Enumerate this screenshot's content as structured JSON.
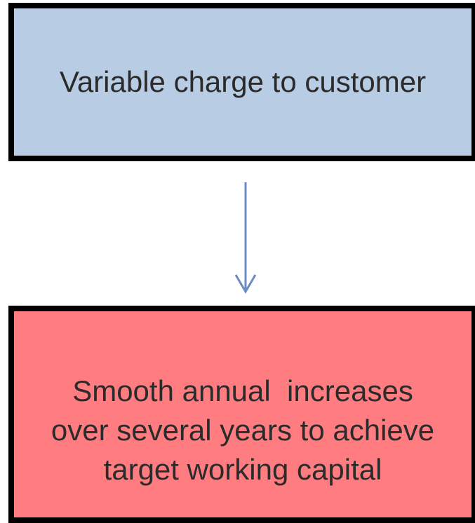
{
  "nodes": [
    {
      "label": "Variable charge to customer"
    },
    {
      "lines": [
        "Smooth annual  increases",
        "over several years to achieve",
        "target working capital"
      ]
    }
  ]
}
